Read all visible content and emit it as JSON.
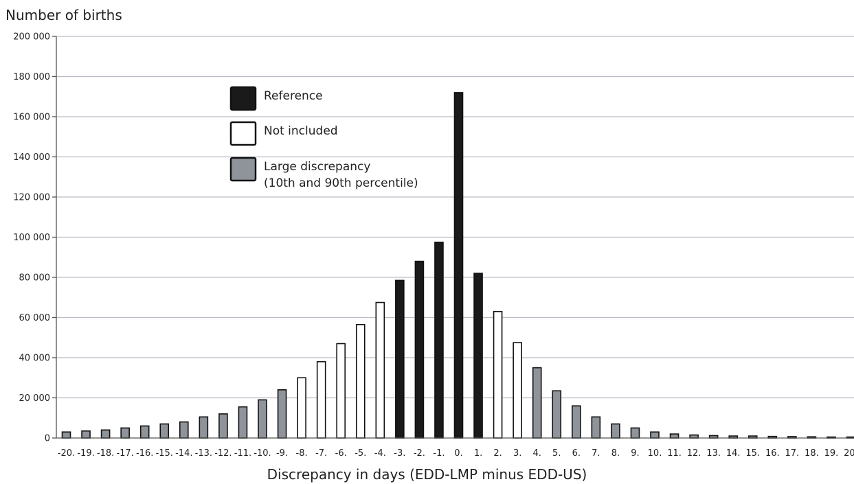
{
  "chart_data": {
    "type": "bar",
    "title": "",
    "ylabel": "Number of births",
    "xlabel": "Discrepancy in days (EDD-LMP minus EDD-US)",
    "ylim": [
      0,
      200000
    ],
    "yticks": [
      0,
      20000,
      40000,
      60000,
      80000,
      100000,
      120000,
      140000,
      160000,
      180000,
      200000
    ],
    "ytick_labels": [
      "0",
      "20 000",
      "40 000",
      "60 000",
      "80 000",
      "100 000",
      "120 000",
      "140 000",
      "160 000",
      "180 000",
      "200 000"
    ],
    "grid": true,
    "legend_position": "top-center",
    "categories": [
      "-20.",
      "-19.",
      "-18.",
      "-17.",
      "-16.",
      "-15.",
      "-14.",
      "-13.",
      "-12.",
      "-11.",
      "-10.",
      "-9.",
      "-8.",
      "-7.",
      "-6.",
      "-5.",
      "-4.",
      "-3.",
      "-2.",
      "-1.",
      "0.",
      "1.",
      "2.",
      "3.",
      "4.",
      "5.",
      "6.",
      "7.",
      "8.",
      "9.",
      "10.",
      "11.",
      "12.",
      "13.",
      "14.",
      "15.",
      "16.",
      "17.",
      "18.",
      "19.",
      "20."
    ],
    "values": [
      3000,
      3500,
      4000,
      5000,
      6000,
      7000,
      8000,
      10500,
      12000,
      15500,
      19000,
      24000,
      30000,
      38000,
      47000,
      56500,
      67500,
      78500,
      88000,
      97500,
      172000,
      82000,
      63000,
      47500,
      35000,
      23500,
      16000,
      10500,
      7000,
      5000,
      3000,
      2000,
      1500,
      1200,
      1000,
      1000,
      800,
      700,
      600,
      500,
      500
    ],
    "groups": [
      "large",
      "large",
      "large",
      "large",
      "large",
      "large",
      "large",
      "large",
      "large",
      "large",
      "large",
      "large",
      "not_included",
      "not_included",
      "not_included",
      "not_included",
      "not_included",
      "reference",
      "reference",
      "reference",
      "reference",
      "reference",
      "not_included",
      "not_included",
      "large",
      "large",
      "large",
      "large",
      "large",
      "large",
      "large",
      "large",
      "large",
      "large",
      "large",
      "large",
      "large",
      "large",
      "large",
      "large",
      "large"
    ],
    "legend": [
      {
        "key": "reference",
        "lines": [
          "Reference"
        ],
        "color": "#1a1a1a"
      },
      {
        "key": "not_included",
        "lines": [
          "Not included"
        ],
        "color": "#ffffff"
      },
      {
        "key": "large",
        "lines": [
          "Large discrepancy",
          "(10th and 90th percentile)"
        ],
        "color": "#8e9499"
      }
    ]
  }
}
